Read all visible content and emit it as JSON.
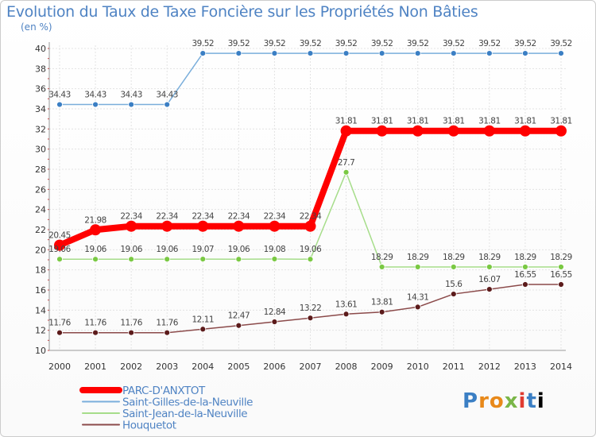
{
  "chart_data": {
    "type": "line",
    "title": "Evolution du Taux de Taxe Foncière sur les Propriétés Non Bâties",
    "ylabel": "(en %)",
    "xlabel": "",
    "ylim": [
      10,
      40
    ],
    "yticks": [
      "10",
      "12",
      "14",
      "16",
      "18",
      "20",
      "22",
      "24",
      "26",
      "28",
      "30",
      "32",
      "34",
      "36",
      "38",
      "40"
    ],
    "categories": [
      "2000",
      "2001",
      "2002",
      "2003",
      "2004",
      "2005",
      "2006",
      "2007",
      "2008",
      "2009",
      "2010",
      "2011",
      "2012",
      "2013",
      "2014"
    ],
    "series": [
      {
        "name": "PARC-D'ANXTOT",
        "color": "#ff0000",
        "highlight": true,
        "values": [
          20.45,
          21.98,
          22.34,
          22.34,
          22.34,
          22.34,
          22.34,
          22.34,
          31.81,
          31.81,
          31.81,
          31.81,
          31.81,
          31.81,
          31.81
        ],
        "labels": [
          "20.45",
          "21.98",
          "22.34",
          "22.34",
          "22.34",
          "22.34",
          "22.34",
          "22.34",
          "31.81",
          "31.81",
          "31.81",
          "31.81",
          "31.81",
          "31.81",
          "31.81"
        ]
      },
      {
        "name": "Saint-Gilles-de-la-Neuville",
        "color": "#7aaedb",
        "marker": "#3b7fc4",
        "values": [
          34.43,
          34.43,
          34.43,
          34.43,
          39.52,
          39.52,
          39.52,
          39.52,
          39.52,
          39.52,
          39.52,
          39.52,
          39.52,
          39.52,
          39.52
        ],
        "labels": [
          "34.43",
          "34.43",
          "34.43",
          "34.43",
          "39.52",
          "39.52",
          "39.52",
          "39.52",
          "39.52",
          "39.52",
          "39.52",
          "39.52",
          "39.52",
          "39.52",
          "39.52"
        ]
      },
      {
        "name": "Saint-Jean-de-la-Neuville",
        "color": "#a6dd8a",
        "marker": "#7ac943",
        "values": [
          19.06,
          19.06,
          19.06,
          19.06,
          19.07,
          19.06,
          19.08,
          19.06,
          27.7,
          18.29,
          18.29,
          18.29,
          18.29,
          18.29,
          18.29
        ],
        "labels": [
          "19.06",
          "19.06",
          "19.06",
          "19.06",
          "19.07",
          "19.06",
          "19.08",
          "19.06",
          "27.7",
          "18.29",
          "18.29",
          "18.29",
          "18.29",
          "18.29",
          "18.29"
        ]
      },
      {
        "name": "Houquetot",
        "color": "#8b4a4a",
        "marker": "#5c1b1b",
        "values": [
          11.76,
          11.76,
          11.76,
          11.76,
          12.11,
          12.47,
          12.84,
          13.22,
          13.61,
          13.81,
          14.31,
          15.6,
          16.07,
          16.55,
          16.55
        ],
        "labels": [
          "11.76",
          "11.76",
          "11.76",
          "11.76",
          "12.11",
          "12.47",
          "12.84",
          "13.22",
          "13.61",
          "13.81",
          "14.31",
          "15.6",
          "16.07",
          "16.55",
          "16.55"
        ]
      }
    ]
  },
  "legend": {
    "items": [
      "PARC-D'ANXTOT",
      "Saint-Gilles-de-la-Neuville",
      "Saint-Jean-de-la-Neuville",
      "Houquetot"
    ]
  },
  "logo": {
    "letters": [
      "P",
      "r",
      "o",
      "x",
      "i",
      "t",
      "i"
    ]
  }
}
